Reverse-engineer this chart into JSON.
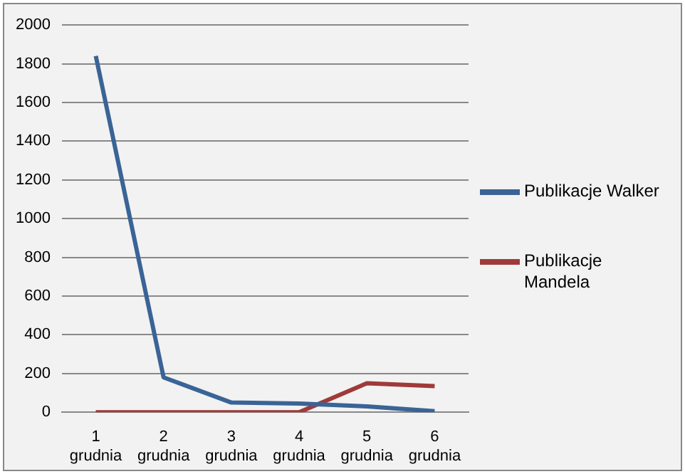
{
  "chart_data": {
    "type": "line",
    "categories": [
      "1 grudnia",
      "2 grudnia",
      "3 grudnia",
      "4 grudnia",
      "5 grudnia",
      "6 grudnia"
    ],
    "series": [
      {
        "name": "Publikacje Walker",
        "color": "#3a6496",
        "values": [
          1840,
          180,
          50,
          45,
          30,
          5
        ]
      },
      {
        "name": "Publikacje Mandela",
        "color": "#a03a3a",
        "values": [
          0,
          0,
          0,
          0,
          150,
          135
        ]
      }
    ],
    "ylim": [
      0,
      2000
    ],
    "yticks": [
      0,
      200,
      400,
      600,
      800,
      1000,
      1200,
      1400,
      1600,
      1800,
      2000
    ],
    "grid": "y",
    "legend": "right",
    "marker": "none",
    "line_style": "solid"
  }
}
